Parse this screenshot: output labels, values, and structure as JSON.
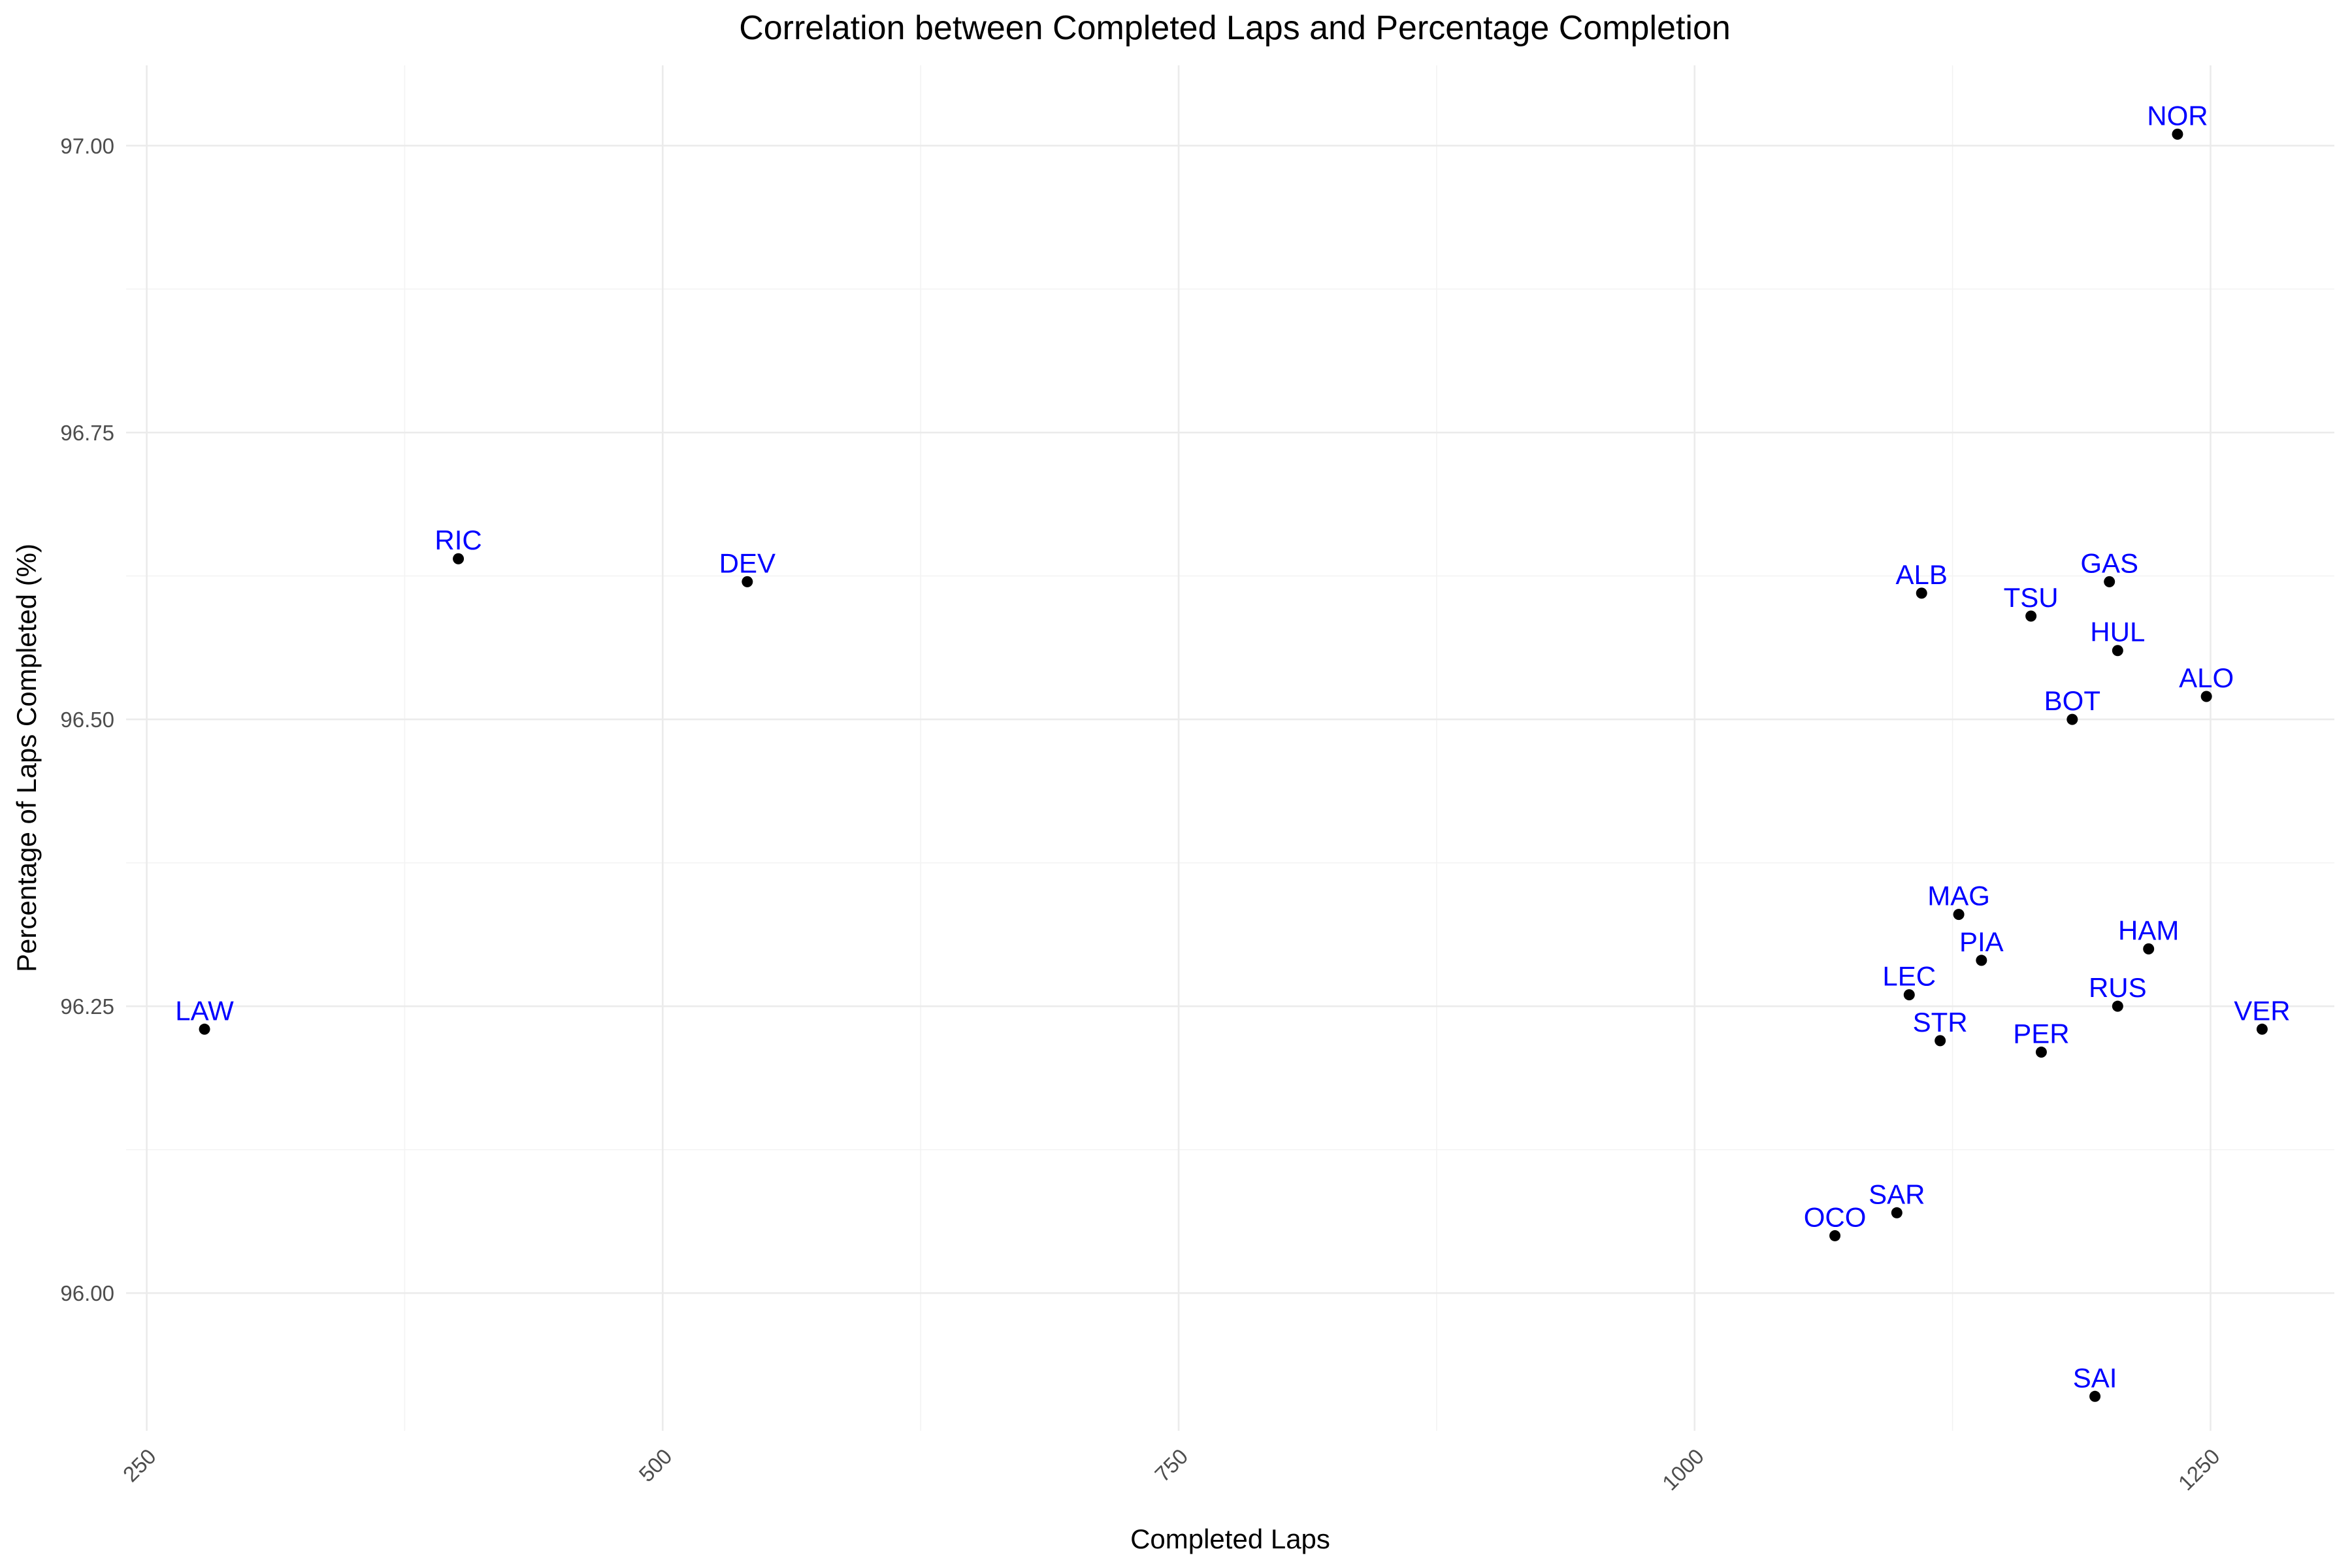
{
  "chart_data": {
    "type": "scatter",
    "title": "Correlation between Completed Laps and Percentage Completion",
    "xlabel": "Completed Laps",
    "ylabel": "Percentage of Laps Completed (%)",
    "xlim": [
      240,
      1310
    ],
    "ylim": [
      95.88,
      97.07
    ],
    "x_ticks": [
      250,
      500,
      750,
      1000,
      1250
    ],
    "x_tick_labels": [
      "250",
      "500",
      "750",
      "1000",
      "1250"
    ],
    "y_ticks": [
      96.0,
      96.25,
      96.5,
      96.75,
      97.0
    ],
    "y_tick_labels": [
      "96.00",
      "96.25",
      "96.50",
      "96.75",
      "97.00"
    ],
    "grid": true,
    "legend": "none",
    "point_color": "#000000",
    "label_color": "#0000ff",
    "points": [
      {
        "label": "NOR",
        "x": 1234,
        "y": 97.01
      },
      {
        "label": "RIC",
        "x": 401,
        "y": 96.64
      },
      {
        "label": "DEV",
        "x": 541,
        "y": 96.62
      },
      {
        "label": "GAS",
        "x": 1201,
        "y": 96.62
      },
      {
        "label": "ALB",
        "x": 1110,
        "y": 96.61
      },
      {
        "label": "TSU",
        "x": 1163,
        "y": 96.59
      },
      {
        "label": "HUL",
        "x": 1205,
        "y": 96.56
      },
      {
        "label": "ALO",
        "x": 1248,
        "y": 96.52
      },
      {
        "label": "BOT",
        "x": 1183,
        "y": 96.5
      },
      {
        "label": "MAG",
        "x": 1128,
        "y": 96.33
      },
      {
        "label": "HAM",
        "x": 1220,
        "y": 96.3
      },
      {
        "label": "PIA",
        "x": 1139,
        "y": 96.29
      },
      {
        "label": "LEC",
        "x": 1104,
        "y": 96.26
      },
      {
        "label": "RUS",
        "x": 1205,
        "y": 96.25
      },
      {
        "label": "LAW",
        "x": 278,
        "y": 96.23
      },
      {
        "label": "VER",
        "x": 1275,
        "y": 96.23
      },
      {
        "label": "STR",
        "x": 1119,
        "y": 96.22
      },
      {
        "label": "PER",
        "x": 1168,
        "y": 96.21
      },
      {
        "label": "SAR",
        "x": 1098,
        "y": 96.07
      },
      {
        "label": "OCO",
        "x": 1068,
        "y": 96.05
      },
      {
        "label": "SAI",
        "x": 1194,
        "y": 95.91
      }
    ]
  }
}
